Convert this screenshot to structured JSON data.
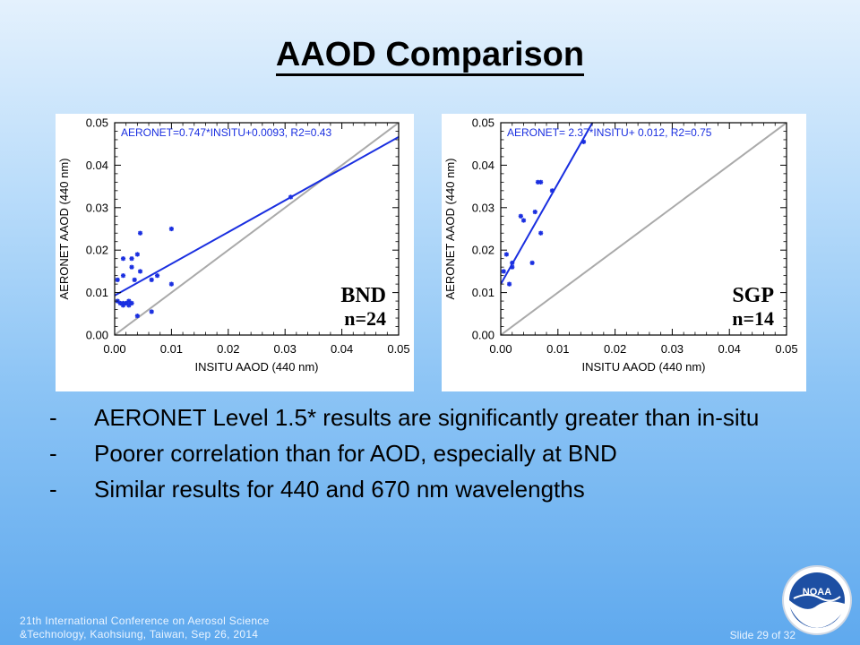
{
  "slide": {
    "title": "AAOD Comparison",
    "bullets": [
      {
        "dash": "-",
        "text": "AERONET Level 1.5* results are significantly greater than in-situ"
      },
      {
        "dash": "-",
        "text": "Poorer correlation than for AOD, especially at BND"
      },
      {
        "dash": "-",
        "text": "Similar results for 440 and 670 nm wavelengths"
      }
    ],
    "footer_line1": "21th International  Conference  on Aerosol Science",
    "footer_line2": "&Technology,  Kaohsiung,  Taiwan,  Sep 26, 2014",
    "slide_number": "Slide 29 of 32",
    "logo_text": "NOAA"
  },
  "colors": {
    "points": "#1a2fe0",
    "fit_line": "#1a2fe0",
    "one_to_one": "#aaaaaa",
    "equation": "#1a2fe0"
  },
  "chart_data": [
    {
      "type": "scatter",
      "site": "BND",
      "n_label": "n=24",
      "xlabel": "INSITU AAOD (440 nm)",
      "ylabel": "AERONET AAOD (440 nm)",
      "xlim": [
        0,
        0.05
      ],
      "ylim": [
        0,
        0.05
      ],
      "xticks": [
        "0.00",
        "0.01",
        "0.02",
        "0.03",
        "0.04",
        "0.05"
      ],
      "yticks": [
        "0.00",
        "0.01",
        "0.02",
        "0.03",
        "0.04",
        "0.05"
      ],
      "equation": "AERONET=0.747*INSITU+0.0093, R2=0.43",
      "fit": {
        "slope": 0.747,
        "intercept": 0.0093
      },
      "one_to_one": true,
      "points": [
        [
          0.0005,
          0.008
        ],
        [
          0.001,
          0.0075
        ],
        [
          0.0015,
          0.007
        ],
        [
          0.002,
          0.0075
        ],
        [
          0.0025,
          0.007
        ],
        [
          0.003,
          0.0075
        ],
        [
          0.0015,
          0.0075
        ],
        [
          0.0025,
          0.008
        ],
        [
          0.0005,
          0.013
        ],
        [
          0.0015,
          0.014
        ],
        [
          0.0015,
          0.018
        ],
        [
          0.003,
          0.016
        ],
        [
          0.003,
          0.018
        ],
        [
          0.004,
          0.019
        ],
        [
          0.0035,
          0.013
        ],
        [
          0.0045,
          0.015
        ],
        [
          0.0045,
          0.024
        ],
        [
          0.0065,
          0.013
        ],
        [
          0.0075,
          0.014
        ],
        [
          0.004,
          0.0045
        ],
        [
          0.0065,
          0.0055
        ],
        [
          0.01,
          0.012
        ],
        [
          0.01,
          0.025
        ],
        [
          0.031,
          0.0325
        ]
      ]
    },
    {
      "type": "scatter",
      "site": "SGP",
      "n_label": "n=14",
      "xlabel": "INSITU AAOD (440 nm)",
      "ylabel": "AERONET AAOD (440 nm)",
      "xlim": [
        0,
        0.05
      ],
      "ylim": [
        0,
        0.05
      ],
      "xticks": [
        "0.00",
        "0.01",
        "0.02",
        "0.03",
        "0.04",
        "0.05"
      ],
      "yticks": [
        "0.00",
        "0.01",
        "0.02",
        "0.03",
        "0.04",
        "0.05"
      ],
      "equation": "AERONET= 2.37*INSITU+ 0.012, R2=0.75",
      "fit": {
        "slope": 2.37,
        "intercept": 0.012
      },
      "one_to_one": true,
      "points": [
        [
          0.0005,
          0.015
        ],
        [
          0.001,
          0.019
        ],
        [
          0.0015,
          0.012
        ],
        [
          0.002,
          0.017
        ],
        [
          0.002,
          0.016
        ],
        [
          0.0035,
          0.028
        ],
        [
          0.004,
          0.027
        ],
        [
          0.0055,
          0.017
        ],
        [
          0.006,
          0.029
        ],
        [
          0.0065,
          0.036
        ],
        [
          0.007,
          0.036
        ],
        [
          0.007,
          0.024
        ],
        [
          0.009,
          0.034
        ],
        [
          0.0145,
          0.0455
        ]
      ]
    }
  ]
}
